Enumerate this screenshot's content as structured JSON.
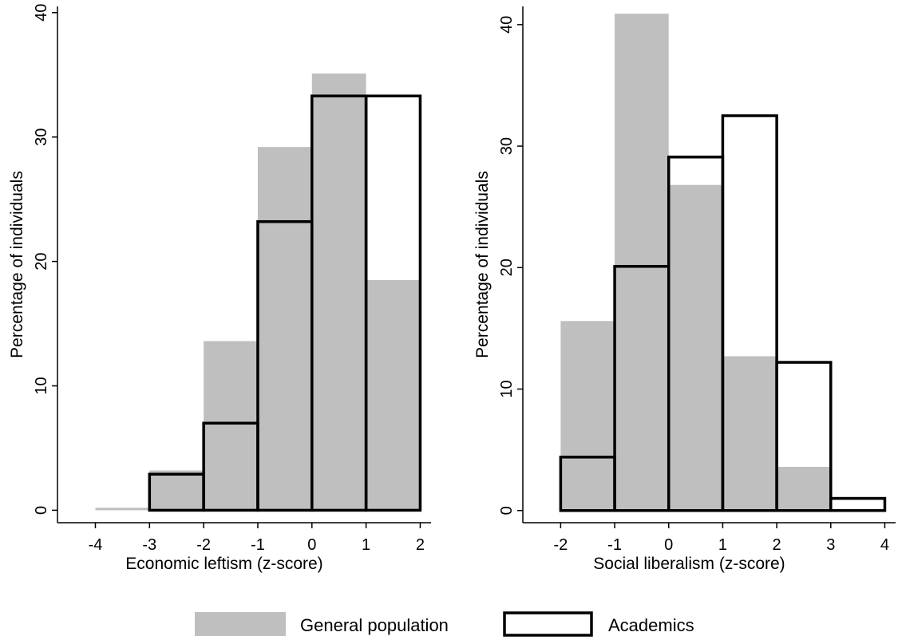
{
  "colors": {
    "general_population": "#bfbfbf",
    "academics_outline": "#000000",
    "axis": "#000000"
  },
  "legend": {
    "general_population": "General population",
    "academics": "Academics"
  },
  "chart_data": [
    {
      "type": "bar",
      "histogram": true,
      "xlabel": "Economic leftism (z-score)",
      "ylabel": "Percentage of individuals",
      "xlim": [
        -4.7,
        2.2
      ],
      "ylim": [
        -1,
        40.5
      ],
      "xticks": [
        -4,
        -3,
        -2,
        -1,
        0,
        1,
        2
      ],
      "yticks": [
        0,
        10,
        20,
        30,
        40
      ],
      "bin_edges": [
        -4,
        -3,
        -2,
        -1,
        0,
        1,
        2
      ],
      "series": [
        {
          "name": "General population",
          "values": [
            0.2,
            3.2,
            13.6,
            29.2,
            35.1,
            18.5
          ]
        },
        {
          "name": "Academics",
          "values": [
            0,
            2.9,
            7.0,
            23.2,
            33.3,
            33.3
          ]
        }
      ]
    },
    {
      "type": "bar",
      "histogram": true,
      "xlabel": "Social liberalism (z-score)",
      "ylabel": "Percentage of individuals",
      "xlim": [
        -2.7,
        4.2
      ],
      "ylim": [
        -1,
        41.5
      ],
      "xticks": [
        -2,
        -1,
        0,
        1,
        2,
        3,
        4
      ],
      "yticks": [
        0,
        10,
        20,
        30,
        40
      ],
      "bin_edges": [
        -2,
        -1,
        0,
        1,
        2,
        3,
        4
      ],
      "series": [
        {
          "name": "General population",
          "values": [
            15.6,
            40.9,
            26.8,
            12.7,
            3.6,
            0
          ]
        },
        {
          "name": "Academics",
          "values": [
            4.4,
            20.1,
            29.1,
            32.5,
            12.2,
            1.0
          ]
        }
      ]
    }
  ]
}
